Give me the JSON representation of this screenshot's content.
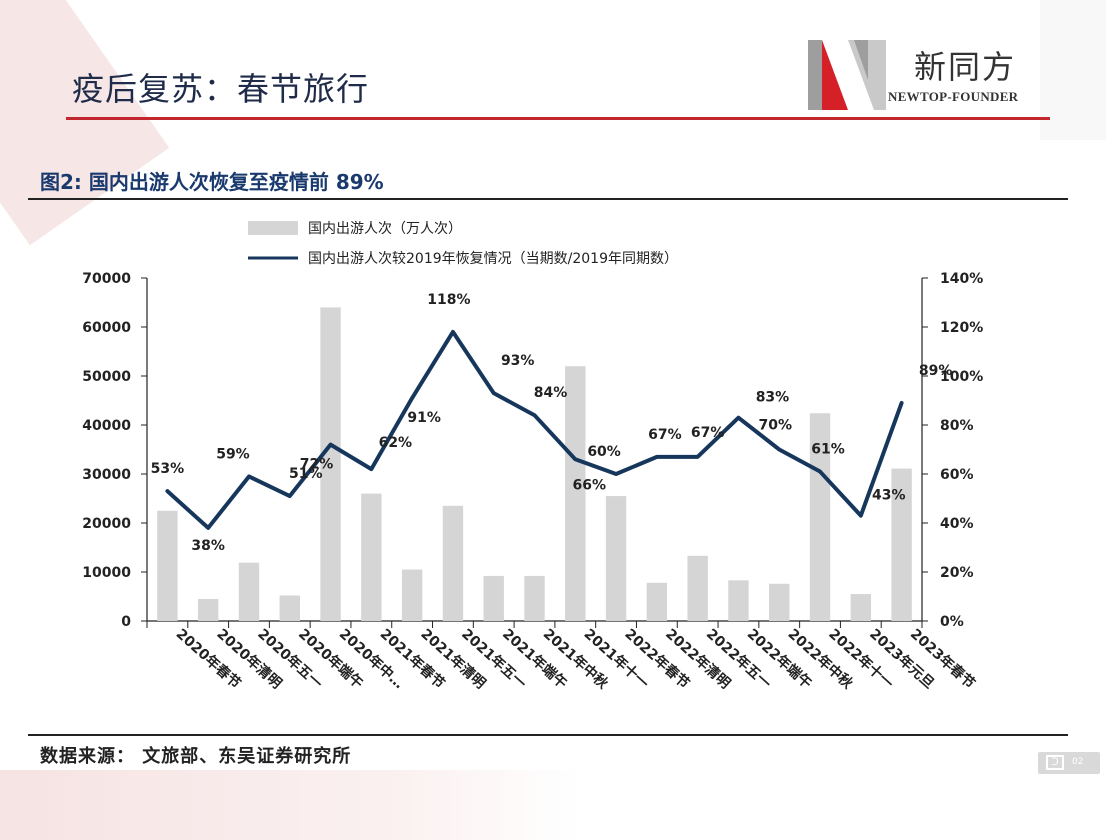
{
  "header": {
    "title": "疫后复苏：春节旅行",
    "logo_cn": "新同方",
    "logo_en": "NEWTOP-FOUNDER"
  },
  "figure": {
    "title": "图2:  国内出游人次恢复至疫情前 89%",
    "source": "数据来源：  文旅部、东吴证券研究所"
  },
  "page_badge": {
    "num": "02"
  },
  "colors": {
    "bar": "#d5d5d5",
    "line": "#16365c",
    "accent": "#c1272d"
  },
  "chart_data": {
    "type": "bar",
    "categories": [
      "2020年春节",
      "2020年清明",
      "2020年五一",
      "2020年端午",
      "2020年中…",
      "2021年春节",
      "2021年清明",
      "2021年五一",
      "2021年端午",
      "2021年中秋",
      "2021年十一",
      "2022年春节",
      "2022年清明",
      "2022年五一",
      "2022年端午",
      "2022年中秋",
      "2022年十一",
      "2023年元旦",
      "2023年春节"
    ],
    "series": [
      {
        "name": "国内出游人次（万人次）",
        "type": "bar",
        "axis": "left",
        "values": [
          22500,
          4500,
          11900,
          5200,
          64000,
          26000,
          10500,
          23500,
          9200,
          9200,
          52000,
          25500,
          7800,
          13300,
          8300,
          7600,
          42400,
          5500,
          31100
        ]
      },
      {
        "name": "国内出游人次较2019年恢复情况（当期数/2019年同期数）",
        "type": "line",
        "axis": "right",
        "values": [
          53,
          38,
          59,
          51,
          72,
          62,
          91,
          118,
          93,
          84,
          66,
          60,
          67,
          67,
          83,
          70,
          61,
          43,
          89
        ],
        "labels": [
          "53%",
          "38%",
          "59%",
          "51%",
          "72%",
          "62%",
          "91%",
          "118%",
          "93%",
          "84%",
          "66%",
          "60%",
          "67%",
          "67%",
          "83%",
          "70%",
          "61%",
          "43%",
          "89%"
        ]
      }
    ],
    "yleft": {
      "ylim": [
        0,
        70000
      ],
      "ticks": [
        "0",
        "10000",
        "20000",
        "30000",
        "40000",
        "50000",
        "60000",
        "70000"
      ]
    },
    "yright": {
      "ylim": [
        0,
        140
      ],
      "ticks": [
        "0%",
        "20%",
        "40%",
        "60%",
        "80%",
        "100%",
        "120%",
        "140%"
      ]
    },
    "legend": "top-left",
    "grid": false
  }
}
